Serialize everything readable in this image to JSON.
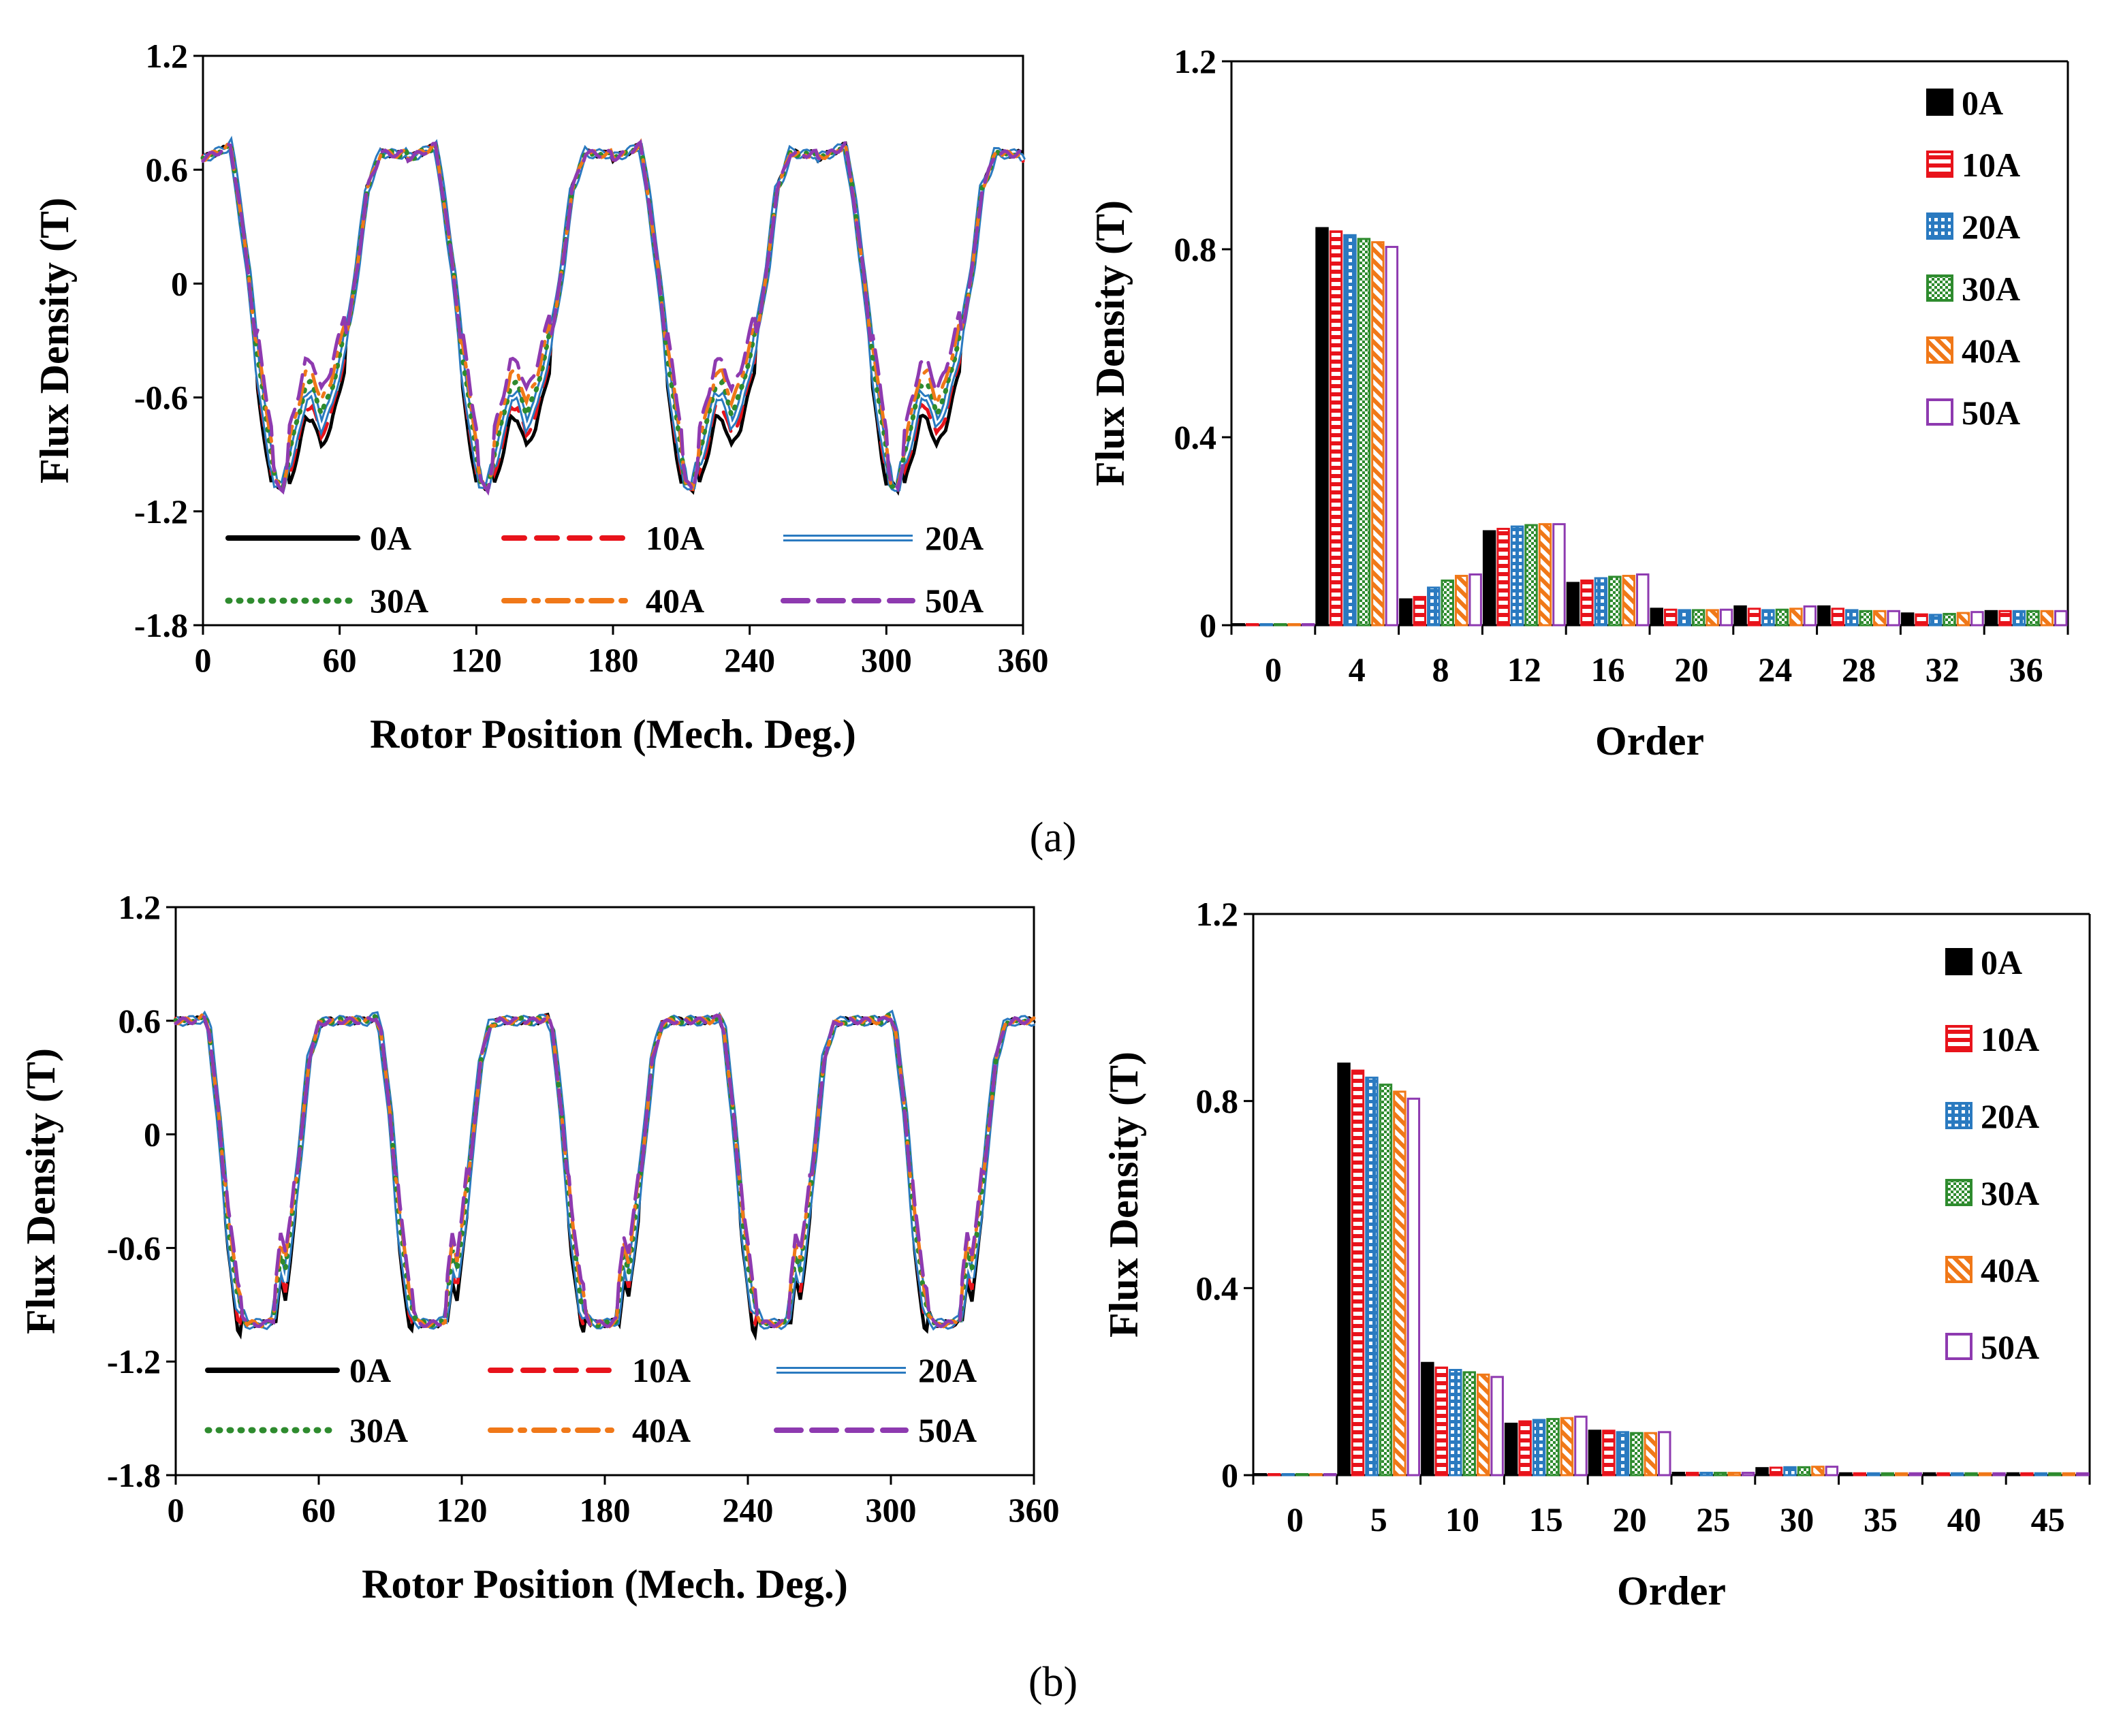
{
  "chart_data": [
    {
      "id": "a-waveform",
      "type": "line",
      "xlabel": "Rotor Position (Mech. Deg.)",
      "ylabel": "Flux Density (T)",
      "xlim": [
        0,
        360
      ],
      "ylim": [
        -1.8,
        1.2
      ],
      "xticks": [
        0,
        60,
        120,
        180,
        240,
        300,
        360
      ],
      "yticks": [
        1.2,
        0.6,
        0,
        -0.6,
        -1.2,
        -1.8
      ],
      "xtick_labels": [
        "0",
        "60",
        "120",
        "180",
        "240",
        "300",
        "360"
      ],
      "ytick_labels": [
        "1.2",
        "0.6",
        "0",
        "-0.6",
        "-1.2",
        "-1.8"
      ],
      "legend_position": "lower-inside",
      "period": 90,
      "base_x": [
        0,
        8,
        12,
        16,
        20,
        24,
        28,
        32,
        35,
        38,
        42,
        45,
        48,
        52,
        56,
        60,
        64,
        68,
        72,
        76,
        78,
        85,
        90
      ],
      "base_y": [
        0.66,
        0.7,
        0.73,
        0.42,
        0.05,
        -0.4,
        -0.75,
        -1.05,
        -1.08,
        -0.9,
        -0.72,
        -0.55,
        -0.55,
        -0.7,
        -0.6,
        -0.4,
        -0.2,
        0.1,
        0.5,
        0.62,
        0.69,
        0.68,
        0.69
      ],
      "series": [
        {
          "name": "0A",
          "color": "#000000",
          "style": "solid",
          "dy_dip": -0.16
        },
        {
          "name": "10A",
          "color": "#e8131b",
          "style": "dashed",
          "dy_dip": -0.1
        },
        {
          "name": "20A",
          "color": "#2a7ac0",
          "style": "double",
          "dy_dip": -0.04
        },
        {
          "name": "30A",
          "color": "#2e8b2e",
          "style": "dotted",
          "dy_dip": 0.02
        },
        {
          "name": "40A",
          "color": "#f07818",
          "style": "dashdot",
          "dy_dip": 0.08
        },
        {
          "name": "50A",
          "color": "#8e3ab0",
          "style": "longdash",
          "dy_dip": 0.14
        }
      ]
    },
    {
      "id": "a-spectrum",
      "type": "bar",
      "xlabel": "Order",
      "ylabel": "Flux Density (T)",
      "ylim": [
        0,
        1.2
      ],
      "yticks": [
        0,
        0.4,
        0.8,
        1.2
      ],
      "ytick_labels": [
        "0",
        "0.4",
        "0.8",
        "1.2"
      ],
      "categories": [
        "0",
        "4",
        "8",
        "12",
        "16",
        "20",
        "24",
        "28",
        "32",
        "36"
      ],
      "series": [
        {
          "name": "0A",
          "color": "#000000",
          "values": [
            0.0,
            0.845,
            0.055,
            0.2,
            0.09,
            0.035,
            0.04,
            0.04,
            0.025,
            0.03
          ]
        },
        {
          "name": "10A",
          "color": "#e8131b",
          "values": [
            0.0,
            0.838,
            0.06,
            0.205,
            0.095,
            0.033,
            0.035,
            0.035,
            0.023,
            0.03
          ]
        },
        {
          "name": "20A",
          "color": "#2a7ac0",
          "values": [
            0.0,
            0.83,
            0.08,
            0.21,
            0.1,
            0.032,
            0.032,
            0.032,
            0.022,
            0.03
          ]
        },
        {
          "name": "30A",
          "color": "#2e8b2e",
          "values": [
            0.0,
            0.822,
            0.095,
            0.213,
            0.103,
            0.032,
            0.033,
            0.03,
            0.024,
            0.03
          ]
        },
        {
          "name": "40A",
          "color": "#f07818",
          "values": [
            0.0,
            0.815,
            0.105,
            0.215,
            0.105,
            0.032,
            0.035,
            0.03,
            0.026,
            0.03
          ]
        },
        {
          "name": "50A",
          "color": "#8e3ab0",
          "values": [
            0.0,
            0.805,
            0.108,
            0.215,
            0.108,
            0.033,
            0.04,
            0.03,
            0.028,
            0.03
          ]
        }
      ]
    },
    {
      "id": "b-waveform",
      "type": "line",
      "xlabel": "Rotor Position (Mech. Deg.)",
      "ylabel": "Flux Density (T)",
      "xlim": [
        0,
        360
      ],
      "ylim": [
        -1.8,
        1.2
      ],
      "xticks": [
        0,
        60,
        120,
        180,
        240,
        300,
        360
      ],
      "yticks": [
        1.2,
        0.6,
        0,
        -0.6,
        -1.2,
        -1.8
      ],
      "xtick_labels": [
        "0",
        "60",
        "120",
        "180",
        "240",
        "300",
        "360"
      ],
      "ytick_labels": [
        "1.2",
        "0.6",
        "0",
        "-0.6",
        "-1.2",
        "-1.8"
      ],
      "legend_position": "lower-inside",
      "period": 72,
      "base_x": [
        0,
        8,
        12,
        14,
        18,
        22,
        26,
        30,
        34,
        38,
        41,
        44,
        46,
        48,
        52,
        56,
        60,
        64,
        68,
        72
      ],
      "base_y": [
        0.6,
        0.6,
        0.62,
        0.55,
        0.1,
        -0.5,
        -0.9,
        -1.0,
        -1.0,
        -1.0,
        -0.98,
        -0.65,
        -0.75,
        -0.55,
        -0.1,
        0.4,
        0.58,
        0.6,
        0.6,
        0.6
      ],
      "series": [
        {
          "name": "0A",
          "color": "#000000",
          "style": "solid",
          "dy_dip": -0.12
        },
        {
          "name": "10A",
          "color": "#e8131b",
          "style": "dashed",
          "dy_dip": -0.07
        },
        {
          "name": "20A",
          "color": "#2a7ac0",
          "style": "double",
          "dy_dip": -0.02
        },
        {
          "name": "30A",
          "color": "#2e8b2e",
          "style": "dotted",
          "dy_dip": 0.03
        },
        {
          "name": "40A",
          "color": "#f07818",
          "style": "dashdot",
          "dy_dip": 0.08
        },
        {
          "name": "50A",
          "color": "#8e3ab0",
          "style": "longdash",
          "dy_dip": 0.12
        }
      ]
    },
    {
      "id": "b-spectrum",
      "type": "bar",
      "xlabel": "Order",
      "ylabel": "Flux Density (T)",
      "ylim": [
        0,
        1.2
      ],
      "yticks": [
        0,
        0.4,
        0.8,
        1.2
      ],
      "ytick_labels": [
        "0",
        "0.4",
        "0.8",
        "1.2"
      ],
      "categories": [
        "0",
        "5",
        "10",
        "15",
        "20",
        "25",
        "30",
        "35",
        "40",
        "45"
      ],
      "series": [
        {
          "name": "0A",
          "color": "#000000",
          "values": [
            0.0,
            0.88,
            0.24,
            0.11,
            0.095,
            0.005,
            0.015,
            0.004,
            0.004,
            0.004
          ]
        },
        {
          "name": "10A",
          "color": "#e8131b",
          "values": [
            0.0,
            0.865,
            0.23,
            0.115,
            0.095,
            0.005,
            0.016,
            0.004,
            0.004,
            0.004
          ]
        },
        {
          "name": "20A",
          "color": "#2a7ac0",
          "values": [
            0.0,
            0.85,
            0.225,
            0.118,
            0.092,
            0.005,
            0.017,
            0.004,
            0.004,
            0.004
          ]
        },
        {
          "name": "30A",
          "color": "#2e8b2e",
          "values": [
            0.0,
            0.835,
            0.22,
            0.12,
            0.09,
            0.005,
            0.017,
            0.004,
            0.004,
            0.004
          ]
        },
        {
          "name": "40A",
          "color": "#f07818",
          "values": [
            0.0,
            0.82,
            0.215,
            0.122,
            0.09,
            0.005,
            0.018,
            0.004,
            0.004,
            0.004
          ]
        },
        {
          "name": "50A",
          "color": "#8e3ab0",
          "values": [
            0.0,
            0.805,
            0.21,
            0.125,
            0.092,
            0.005,
            0.018,
            0.004,
            0.004,
            0.004
          ]
        }
      ]
    }
  ],
  "captions": {
    "a": "(a)",
    "b": "(b)"
  }
}
